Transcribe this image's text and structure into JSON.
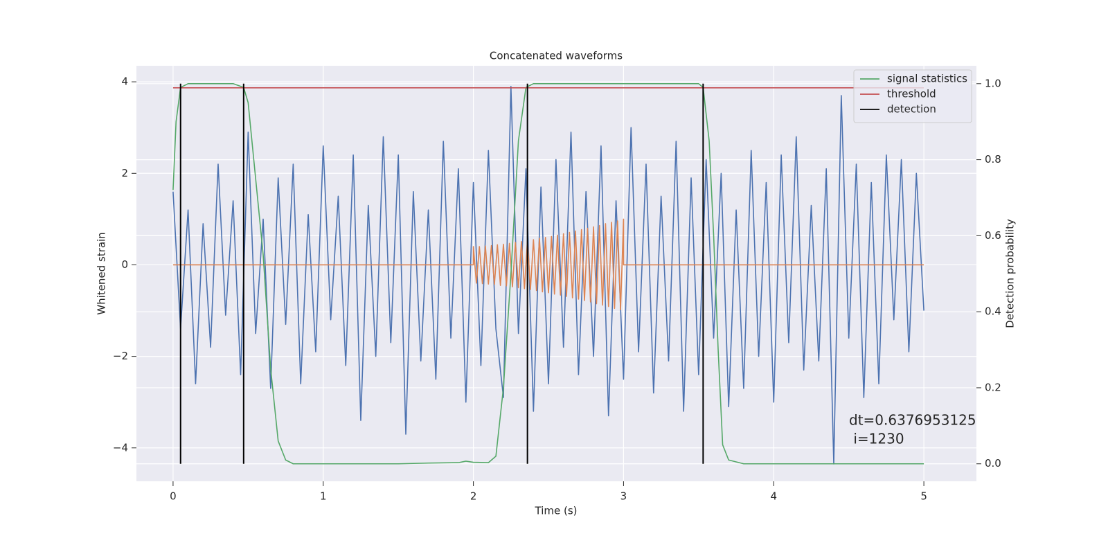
{
  "chart_data": {
    "type": "line",
    "title": "Concatenated waveforms",
    "x_label": "Time (s)",
    "y_label": "Whitened strain",
    "y2_label": "Detection probability",
    "xlim": [
      -0.244,
      5.35
    ],
    "xticks": [
      0,
      1,
      2,
      3,
      4,
      5
    ],
    "ylim": [
      -4.73,
      4.35
    ],
    "yticks": [
      {
        "value": -4,
        "label": "−4"
      },
      {
        "value": -2,
        "label": "−2"
      },
      0,
      2,
      4
    ],
    "y2lim": [
      -0.046,
      1.047
    ],
    "y2ticks": [
      {
        "value": 0,
        "label": "0.0"
      },
      0.2,
      0.4,
      0.6,
      0.8,
      {
        "value": 1,
        "label": "1.0"
      }
    ],
    "grid": true,
    "legend": "upper right",
    "annotation": [
      "dt=0.6376953125",
      " i=1230"
    ],
    "series": [
      {
        "color": "#4c72b0",
        "x": [
          0,
          0.05,
          0.1,
          0.15,
          0.2,
          0.25,
          0.3,
          0.35,
          0.4,
          0.45,
          0.5,
          0.55,
          0.6,
          0.65,
          0.7,
          0.75,
          0.8,
          0.85,
          0.9,
          0.95,
          1,
          1.05,
          1.1,
          1.15,
          1.2,
          1.25,
          1.3,
          1.35,
          1.4,
          1.45,
          1.5,
          1.55,
          1.6,
          1.65,
          1.7,
          1.75,
          1.8,
          1.85,
          1.9,
          1.95,
          2,
          2.05,
          2.1,
          2.15,
          2.2,
          2.25,
          2.3,
          2.35,
          2.4,
          2.45,
          2.5,
          2.55,
          2.6,
          2.65,
          2.7,
          2.75,
          2.8,
          2.85,
          2.9,
          2.95,
          3,
          3.05,
          3.1,
          3.15,
          3.2,
          3.25,
          3.3,
          3.35,
          3.4,
          3.45,
          3.5,
          3.55,
          3.6,
          3.65,
          3.7,
          3.75,
          3.8,
          3.85,
          3.9,
          3.95,
          4,
          4.05,
          4.1,
          4.15,
          4.2,
          4.25,
          4.3,
          4.35,
          4.4,
          4.45,
          4.5,
          4.55,
          4.6,
          4.65,
          4.7,
          4.75,
          4.8,
          4.85,
          4.9,
          4.95,
          5
        ],
        "values": [
          1.6,
          -1.4,
          1.2,
          -2.6,
          0.9,
          -1.8,
          2.2,
          -1.1,
          1.4,
          -2.4,
          2.9,
          -1.5,
          1.0,
          -2.7,
          1.9,
          -1.3,
          2.2,
          -2.6,
          1.1,
          -1.9,
          2.6,
          -1.2,
          1.5,
          -2.2,
          2.4,
          -3.4,
          1.3,
          -2.0,
          2.8,
          -1.7,
          2.4,
          -3.7,
          1.6,
          -2.1,
          1.2,
          -2.5,
          2.7,
          -1.6,
          2.1,
          -3.0,
          1.8,
          -2.2,
          2.5,
          -1.4,
          -2.9,
          3.9,
          -1.5,
          2.1,
          -3.2,
          1.7,
          -2.6,
          2.3,
          -1.8,
          2.9,
          -2.4,
          1.6,
          -2.0,
          2.6,
          -3.3,
          1.4,
          -2.5,
          3.0,
          -1.9,
          2.2,
          -2.8,
          1.5,
          -2.1,
          2.7,
          -3.2,
          1.9,
          -2.4,
          2.3,
          -1.6,
          2.0,
          -3.1,
          1.2,
          -2.7,
          2.5,
          -2.0,
          1.8,
          -3.0,
          2.4,
          -1.7,
          2.8,
          -2.3,
          1.3,
          -2.1,
          2.1,
          -4.35,
          3.7,
          -1.6,
          2.2,
          -2.9,
          1.8,
          -2.6,
          2.4,
          -1.2,
          2.3,
          -1.9,
          2.0,
          -1.0
        ]
      },
      {
        "color": "#dd8452",
        "x": [
          0,
          2,
          2,
          2.02,
          2.04,
          2.06,
          2.08,
          2.1,
          2.12,
          2.14,
          2.16,
          2.18,
          2.2,
          2.22,
          2.24,
          2.26,
          2.28,
          2.3,
          2.32,
          2.34,
          2.36,
          2.38,
          2.4,
          2.42,
          2.44,
          2.46,
          2.48,
          2.5,
          2.52,
          2.54,
          2.56,
          2.58,
          2.6,
          2.62,
          2.64,
          2.66,
          2.68,
          2.7,
          2.72,
          2.74,
          2.76,
          2.78,
          2.8,
          2.82,
          2.84,
          2.86,
          2.88,
          2.9,
          2.92,
          2.94,
          2.96,
          2.98,
          3,
          3,
          5
        ],
        "values": [
          0,
          0,
          0.4,
          -0.4,
          0.4,
          -0.41,
          0.41,
          -0.42,
          0.42,
          -0.43,
          0.44,
          -0.45,
          0.45,
          -0.46,
          0.47,
          -0.48,
          0.49,
          -0.5,
          0.51,
          -0.52,
          0.53,
          -0.54,
          0.55,
          -0.56,
          0.58,
          -0.59,
          0.6,
          -0.61,
          0.62,
          -0.64,
          0.65,
          -0.66,
          0.68,
          -0.69,
          0.71,
          -0.72,
          0.74,
          -0.75,
          0.77,
          -0.78,
          0.8,
          -0.81,
          0.83,
          -0.85,
          0.86,
          -0.88,
          0.9,
          -0.91,
          0.93,
          -0.95,
          0.96,
          -0.98,
          1.0,
          0,
          0
        ]
      },
      {
        "name": "signal statistics",
        "color": "#55a868",
        "axis": "y2",
        "x": [
          0,
          0.02,
          0.05,
          0.1,
          0.4,
          0.47,
          0.5,
          0.55,
          0.6,
          0.65,
          0.7,
          0.75,
          0.8,
          1.5,
          1.7,
          1.9,
          1.95,
          2.0,
          2.1,
          2.15,
          2.2,
          2.25,
          2.3,
          2.35,
          2.4,
          3.5,
          3.53,
          3.57,
          3.6,
          3.63,
          3.66,
          3.7,
          3.8,
          5.0
        ],
        "values": [
          0.72,
          0.9,
          0.99,
          1.0,
          1.0,
          0.99,
          0.95,
          0.75,
          0.55,
          0.25,
          0.06,
          0.01,
          0.0,
          0.0,
          0.002,
          0.003,
          0.007,
          0.004,
          0.003,
          0.02,
          0.2,
          0.5,
          0.85,
          0.99,
          1.0,
          1.0,
          0.99,
          0.85,
          0.6,
          0.3,
          0.05,
          0.01,
          0.0,
          0.0
        ]
      },
      {
        "name": "threshold",
        "color": "#c44e52",
        "axis": "y2",
        "x": [
          0,
          5
        ],
        "values": [
          0.989,
          0.989
        ]
      }
    ],
    "detections": {
      "name": "detection",
      "color": "#000000",
      "x": [
        0.05,
        0.47,
        2.36,
        3.53
      ]
    }
  }
}
